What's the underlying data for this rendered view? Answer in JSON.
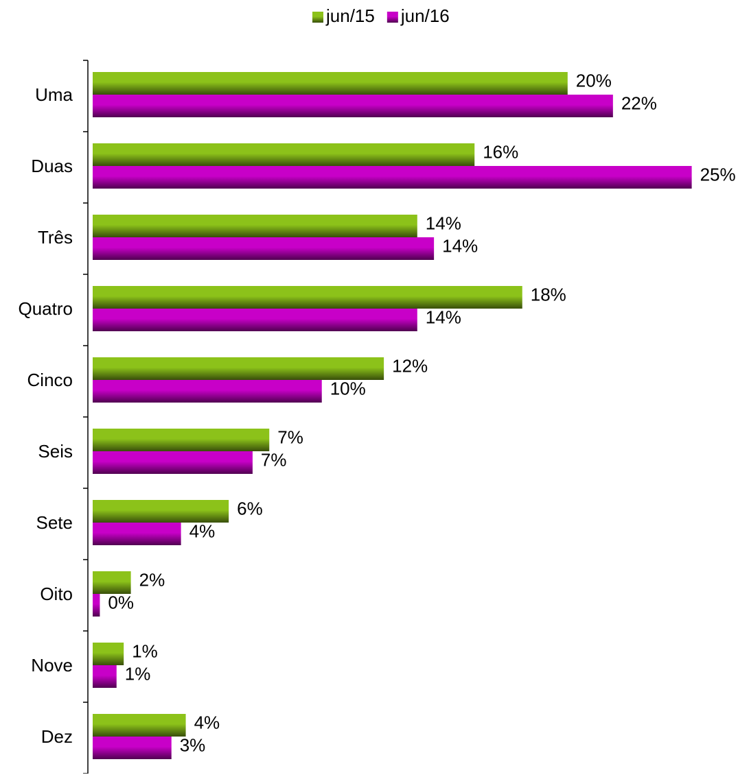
{
  "chart_data": {
    "type": "hbar",
    "categories": [
      "Uma",
      "Duas",
      "Três",
      "Quatro",
      "Cinco",
      "Seis",
      "Sete",
      "Oito",
      "Nove",
      "Dez"
    ],
    "series": [
      {
        "name": "jun/15",
        "color": "#8cc21a",
        "values": [
          19.9,
          16.0,
          13.6,
          18.0,
          12.2,
          7.4,
          5.7,
          1.6,
          1.3,
          3.9
        ],
        "value_labels": [
          "20%",
          "16%",
          "14%",
          "18%",
          "12%",
          "7%",
          "6%",
          "2%",
          "1%",
          "4%"
        ]
      },
      {
        "name": "jun/16",
        "color": "#c800c8",
        "values": [
          21.8,
          25.1,
          14.3,
          13.6,
          9.6,
          6.7,
          3.7,
          0.3,
          1.0,
          3.3
        ],
        "value_labels": [
          "22%",
          "25%",
          "14%",
          "14%",
          "10%",
          "7%",
          "4%",
          "0%",
          "1%",
          "3%"
        ]
      }
    ],
    "xlim": [
      0,
      27.5
    ],
    "legend": "top"
  }
}
